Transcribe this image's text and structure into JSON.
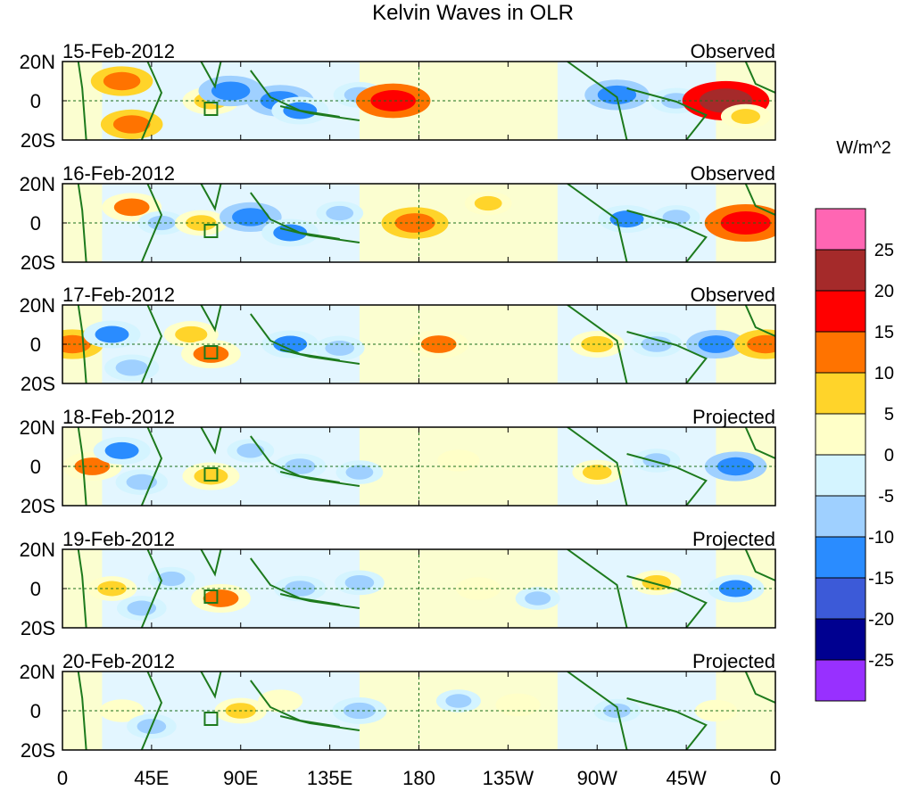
{
  "chart_data": {
    "type": "heatmap",
    "title": "Kelvin Waves in OLR",
    "units": "W/m^2",
    "x_ticks": [
      "0",
      "45E",
      "90E",
      "135E",
      "180",
      "135W",
      "90W",
      "45W",
      "0"
    ],
    "x_range_deg": [
      0,
      360
    ],
    "y_ticks": [
      "20N",
      "0",
      "20S"
    ],
    "y_range_deg": [
      20,
      -20
    ],
    "colorbar": {
      "labels": [
        "25",
        "20",
        "15",
        "10",
        "5",
        "0",
        "-5",
        "-10",
        "-15",
        "-20",
        "-25"
      ],
      "bins": [
        {
          "range": "> 25",
          "color": "#ff66b3"
        },
        {
          "range": "20 to 25",
          "color": "#a52a2a"
        },
        {
          "range": "15 to 20",
          "color": "#ff0000"
        },
        {
          "range": "10 to 15",
          "color": "#ff7300"
        },
        {
          "range": "5 to 10",
          "color": "#ffd42a"
        },
        {
          "range": "0 to 5",
          "color": "#ffffc8"
        },
        {
          "range": "-5 to 0",
          "color": "#d4f4ff"
        },
        {
          "range": "-10 to -5",
          "color": "#9fd0ff"
        },
        {
          "range": "-15 to -10",
          "color": "#2a8cff"
        },
        {
          "range": "-20 to -15",
          "color": "#3c5ad8"
        },
        {
          "range": "-25 to -20",
          "color": "#000090"
        },
        {
          "range": "< -25",
          "color": "#9830ff"
        }
      ]
    },
    "panels": [
      {
        "date": "15-Feb-2012",
        "kind": "Observed",
        "anomalies": [
          {
            "lon": 30,
            "lat": 10,
            "value": 12
          },
          {
            "lon": 35,
            "lat": -12,
            "value": 12
          },
          {
            "lon": 75,
            "lat": 0,
            "value": 10
          },
          {
            "lon": 85,
            "lat": 5,
            "value": -13
          },
          {
            "lon": 110,
            "lat": 0,
            "value": -14
          },
          {
            "lon": 120,
            "lat": -5,
            "value": -10
          },
          {
            "lon": 150,
            "lat": 3,
            "value": -8
          },
          {
            "lon": 167,
            "lat": 0,
            "value": 17
          },
          {
            "lon": 280,
            "lat": 3,
            "value": -13
          },
          {
            "lon": 310,
            "lat": 0,
            "value": -8
          },
          {
            "lon": 335,
            "lat": 0,
            "value": 22
          },
          {
            "lon": 345,
            "lat": -8,
            "value": 7
          }
        ]
      },
      {
        "date": "16-Feb-2012",
        "kind": "Observed",
        "anomalies": [
          {
            "lon": 35,
            "lat": 8,
            "value": 11
          },
          {
            "lon": 50,
            "lat": 0,
            "value": -6
          },
          {
            "lon": 70,
            "lat": 0,
            "value": 8
          },
          {
            "lon": 95,
            "lat": 3,
            "value": -12
          },
          {
            "lon": 115,
            "lat": -5,
            "value": -10
          },
          {
            "lon": 140,
            "lat": 5,
            "value": -6
          },
          {
            "lon": 178,
            "lat": 0,
            "value": 14
          },
          {
            "lon": 215,
            "lat": 10,
            "value": 6
          },
          {
            "lon": 285,
            "lat": 2,
            "value": -10
          },
          {
            "lon": 310,
            "lat": 3,
            "value": -6
          },
          {
            "lon": 345,
            "lat": 0,
            "value": 20
          }
        ]
      },
      {
        "date": "17-Feb-2012",
        "kind": "Observed",
        "anomalies": [
          {
            "lon": 5,
            "lat": 0,
            "value": 12
          },
          {
            "lon": 25,
            "lat": 5,
            "value": -10
          },
          {
            "lon": 35,
            "lat": -12,
            "value": -9
          },
          {
            "lon": 65,
            "lat": 5,
            "value": 9
          },
          {
            "lon": 75,
            "lat": -5,
            "value": 11
          },
          {
            "lon": 115,
            "lat": 0,
            "value": -10
          },
          {
            "lon": 140,
            "lat": -2,
            "value": -7
          },
          {
            "lon": 190,
            "lat": 0,
            "value": 11
          },
          {
            "lon": 270,
            "lat": 0,
            "value": 9
          },
          {
            "lon": 300,
            "lat": 0,
            "value": -8
          },
          {
            "lon": 330,
            "lat": 0,
            "value": -11
          },
          {
            "lon": 355,
            "lat": 0,
            "value": 12
          }
        ]
      },
      {
        "date": "18-Feb-2012",
        "kind": "Projected",
        "anomalies": [
          {
            "lon": 15,
            "lat": 0,
            "value": 11
          },
          {
            "lon": 30,
            "lat": 8,
            "value": -10
          },
          {
            "lon": 40,
            "lat": -8,
            "value": -8
          },
          {
            "lon": 75,
            "lat": -5,
            "value": 10
          },
          {
            "lon": 95,
            "lat": 8,
            "value": -6
          },
          {
            "lon": 120,
            "lat": 0,
            "value": -8
          },
          {
            "lon": 150,
            "lat": -3,
            "value": -6
          },
          {
            "lon": 200,
            "lat": 3,
            "value": 4
          },
          {
            "lon": 270,
            "lat": -3,
            "value": 7
          },
          {
            "lon": 300,
            "lat": 3,
            "value": -6
          },
          {
            "lon": 340,
            "lat": 0,
            "value": -12
          }
        ]
      },
      {
        "date": "19-Feb-2012",
        "kind": "Projected",
        "anomalies": [
          {
            "lon": 25,
            "lat": 0,
            "value": 7
          },
          {
            "lon": 40,
            "lat": -10,
            "value": -7
          },
          {
            "lon": 55,
            "lat": 5,
            "value": -6
          },
          {
            "lon": 80,
            "lat": -5,
            "value": 11
          },
          {
            "lon": 120,
            "lat": 0,
            "value": -8
          },
          {
            "lon": 150,
            "lat": 3,
            "value": -7
          },
          {
            "lon": 210,
            "lat": 0,
            "value": 5
          },
          {
            "lon": 240,
            "lat": -5,
            "value": -5
          },
          {
            "lon": 300,
            "lat": 3,
            "value": 7
          },
          {
            "lon": 340,
            "lat": 0,
            "value": -10
          }
        ]
      },
      {
        "date": "20-Feb-2012",
        "kind": "Projected",
        "anomalies": [
          {
            "lon": 30,
            "lat": 0,
            "value": 5
          },
          {
            "lon": 45,
            "lat": -8,
            "value": -7
          },
          {
            "lon": 90,
            "lat": 0,
            "value": 8
          },
          {
            "lon": 110,
            "lat": 5,
            "value": 5
          },
          {
            "lon": 150,
            "lat": 0,
            "value": -9
          },
          {
            "lon": 200,
            "lat": 5,
            "value": -5
          },
          {
            "lon": 230,
            "lat": 3,
            "value": 5
          },
          {
            "lon": 280,
            "lat": 0,
            "value": -6
          },
          {
            "lon": 330,
            "lat": 0,
            "value": 4
          }
        ]
      }
    ]
  }
}
